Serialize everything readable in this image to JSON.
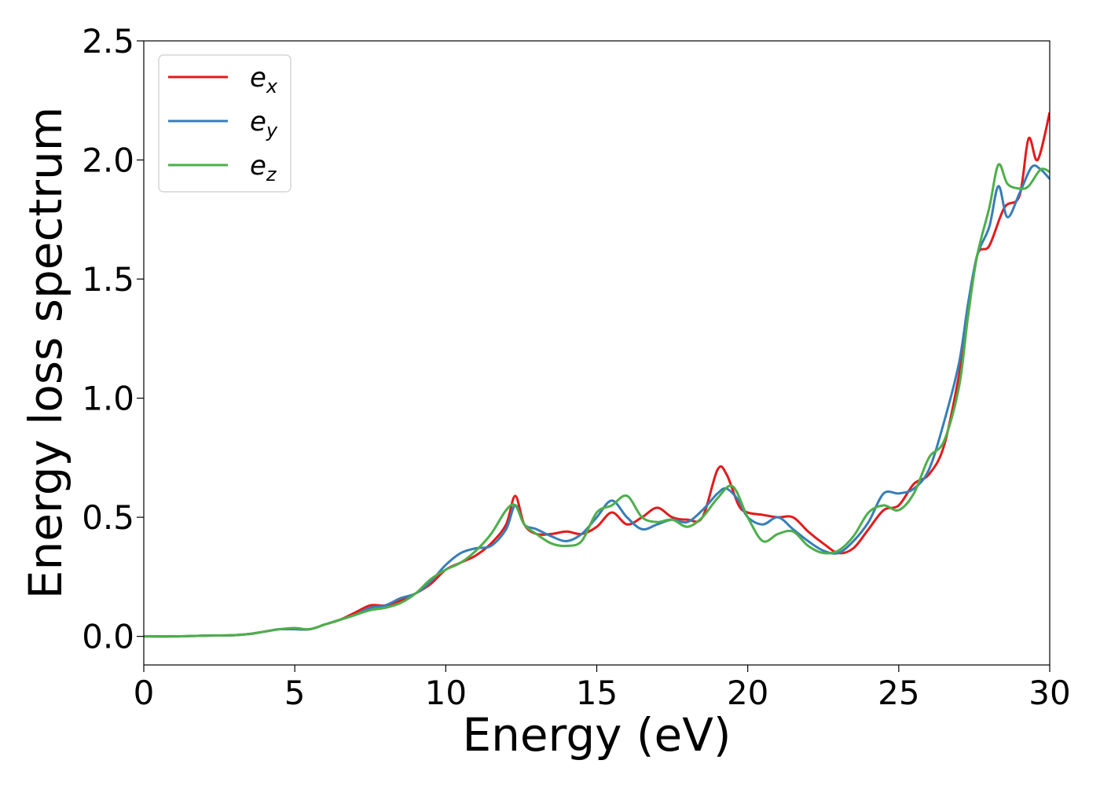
{
  "chart_data": {
    "type": "line",
    "xlabel": "Energy (eV)",
    "ylabel": "Energy loss spectrum",
    "xlim": [
      0,
      30
    ],
    "ylim": [
      -0.12,
      2.5
    ],
    "xticks": [
      "0",
      "5",
      "10",
      "15",
      "20",
      "25",
      "30"
    ],
    "yticks": [
      "0.0",
      "0.5",
      "1.0",
      "1.5",
      "2.0",
      "2.5"
    ],
    "grid": false,
    "legend_position": "top-left",
    "series": [
      {
        "name": "e",
        "subscript": "x",
        "color": "#e41a1c",
        "x": [
          0,
          1,
          2,
          3,
          3.5,
          4,
          4.5,
          5,
          5.5,
          6,
          6.5,
          7,
          7.5,
          8,
          8.5,
          9,
          9.5,
          10,
          10.5,
          11,
          11.5,
          12,
          12.3,
          12.6,
          13,
          13.5,
          14,
          14.5,
          15,
          15.5,
          16,
          16.5,
          17,
          17.5,
          18,
          18.5,
          19,
          19.3,
          19.7,
          20,
          20.5,
          21,
          21.5,
          22,
          22.5,
          23,
          23.5,
          24,
          24.5,
          25,
          25.5,
          26,
          26.5,
          27,
          27.3,
          27.6,
          28,
          28.5,
          29,
          29.3,
          29.6,
          30
        ],
        "values": [
          0.0,
          0.0,
          0.003,
          0.005,
          0.01,
          0.02,
          0.03,
          0.03,
          0.03,
          0.05,
          0.07,
          0.1,
          0.13,
          0.13,
          0.15,
          0.18,
          0.22,
          0.28,
          0.31,
          0.34,
          0.39,
          0.47,
          0.59,
          0.47,
          0.43,
          0.43,
          0.44,
          0.43,
          0.46,
          0.52,
          0.47,
          0.5,
          0.54,
          0.5,
          0.49,
          0.5,
          0.7,
          0.68,
          0.55,
          0.52,
          0.51,
          0.5,
          0.5,
          0.44,
          0.39,
          0.35,
          0.37,
          0.45,
          0.53,
          0.55,
          0.64,
          0.68,
          0.8,
          1.1,
          1.35,
          1.6,
          1.64,
          1.8,
          1.85,
          2.09,
          2.0,
          2.2
        ]
      },
      {
        "name": "e",
        "subscript": "y",
        "color": "#377eb8",
        "x": [
          0,
          1,
          2,
          3,
          3.5,
          4,
          4.5,
          5,
          5.5,
          6,
          6.5,
          7,
          7.5,
          8,
          8.5,
          9,
          9.5,
          10,
          10.5,
          11,
          11.5,
          12,
          12.3,
          12.6,
          13,
          13.5,
          14,
          14.5,
          15,
          15.5,
          16,
          16.5,
          17,
          17.5,
          18,
          18.5,
          19,
          19.3,
          19.7,
          20,
          20.5,
          21,
          21.5,
          22,
          22.5,
          23,
          23.5,
          24,
          24.5,
          25,
          25.5,
          26,
          26.5,
          27,
          27.3,
          27.6,
          28,
          28.3,
          28.6,
          29,
          29.4,
          29.7,
          30
        ],
        "values": [
          0.0,
          0.0,
          0.003,
          0.005,
          0.01,
          0.02,
          0.03,
          0.03,
          0.03,
          0.05,
          0.07,
          0.09,
          0.12,
          0.13,
          0.16,
          0.18,
          0.23,
          0.3,
          0.35,
          0.37,
          0.38,
          0.45,
          0.55,
          0.47,
          0.45,
          0.42,
          0.4,
          0.43,
          0.5,
          0.57,
          0.5,
          0.45,
          0.47,
          0.49,
          0.48,
          0.53,
          0.6,
          0.62,
          0.57,
          0.5,
          0.47,
          0.5,
          0.45,
          0.4,
          0.36,
          0.35,
          0.4,
          0.48,
          0.6,
          0.6,
          0.62,
          0.7,
          0.9,
          1.15,
          1.4,
          1.6,
          1.72,
          1.89,
          1.76,
          1.86,
          1.97,
          1.96,
          1.92
        ]
      },
      {
        "name": "e",
        "subscript": "z",
        "color": "#4daf4a",
        "x": [
          0,
          1,
          2,
          3,
          3.5,
          4,
          4.5,
          5,
          5.5,
          6,
          6.5,
          7,
          7.5,
          8,
          8.5,
          9,
          9.5,
          10,
          10.5,
          11,
          11.5,
          12,
          12.3,
          12.6,
          13,
          13.5,
          14,
          14.5,
          15,
          15.5,
          16,
          16.5,
          17,
          17.5,
          18,
          18.5,
          19,
          19.5,
          20,
          20.5,
          21,
          21.5,
          22,
          22.5,
          23,
          23.5,
          24,
          24.5,
          25,
          25.5,
          26,
          26.5,
          27,
          27.3,
          27.6,
          28,
          28.3,
          28.6,
          29,
          29.3,
          29.7,
          30
        ],
        "values": [
          0.0,
          0.0,
          0.003,
          0.005,
          0.01,
          0.02,
          0.03,
          0.035,
          0.03,
          0.05,
          0.07,
          0.09,
          0.11,
          0.12,
          0.14,
          0.18,
          0.24,
          0.28,
          0.31,
          0.36,
          0.43,
          0.53,
          0.55,
          0.47,
          0.43,
          0.39,
          0.38,
          0.4,
          0.52,
          0.55,
          0.59,
          0.5,
          0.48,
          0.49,
          0.46,
          0.5,
          0.58,
          0.63,
          0.5,
          0.4,
          0.43,
          0.44,
          0.38,
          0.35,
          0.36,
          0.42,
          0.52,
          0.55,
          0.53,
          0.6,
          0.75,
          0.82,
          1.05,
          1.35,
          1.6,
          1.8,
          1.98,
          1.9,
          1.88,
          1.89,
          1.96,
          1.95
        ]
      }
    ]
  }
}
